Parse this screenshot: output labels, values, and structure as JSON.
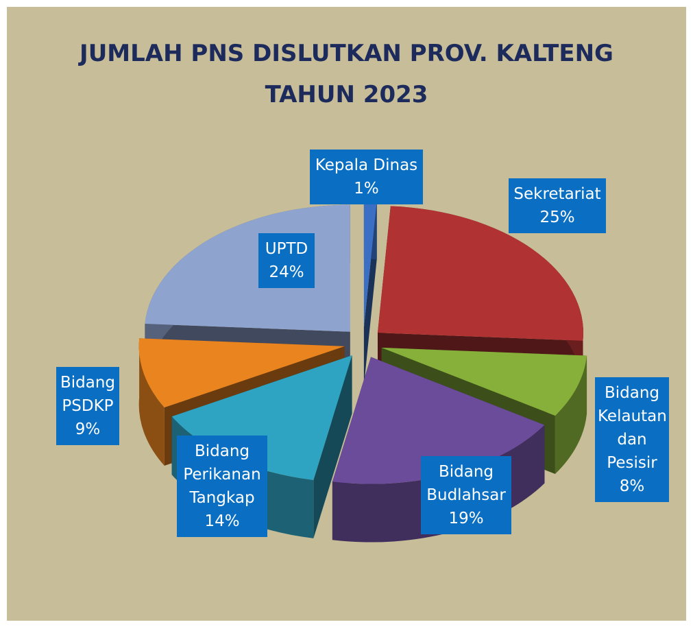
{
  "chart_data": {
    "type": "pie",
    "title": "JUMLAH PNS DISLUTKAN PROV. KALTENG",
    "subtitle": "TAHUN 2023",
    "categories": [
      "Kepala Dinas",
      "Sekretariat",
      "Bidang Kelautan dan Pesisir",
      "Bidang Budlahsar",
      "Bidang Perikanan Tangkap",
      "Bidang PSDKP",
      "UPTD"
    ],
    "values": [
      1,
      25,
      8,
      19,
      14,
      9,
      24
    ],
    "value_labels": [
      "1%",
      "25%",
      "8%",
      "19%",
      "14%",
      "9%",
      "24%"
    ],
    "colors": [
      "#3a6fc4",
      "#b03232",
      "#86b03a",
      "#6b4c9a",
      "#2fa3c2",
      "#ea841f",
      "#8fa3cf"
    ]
  }
}
